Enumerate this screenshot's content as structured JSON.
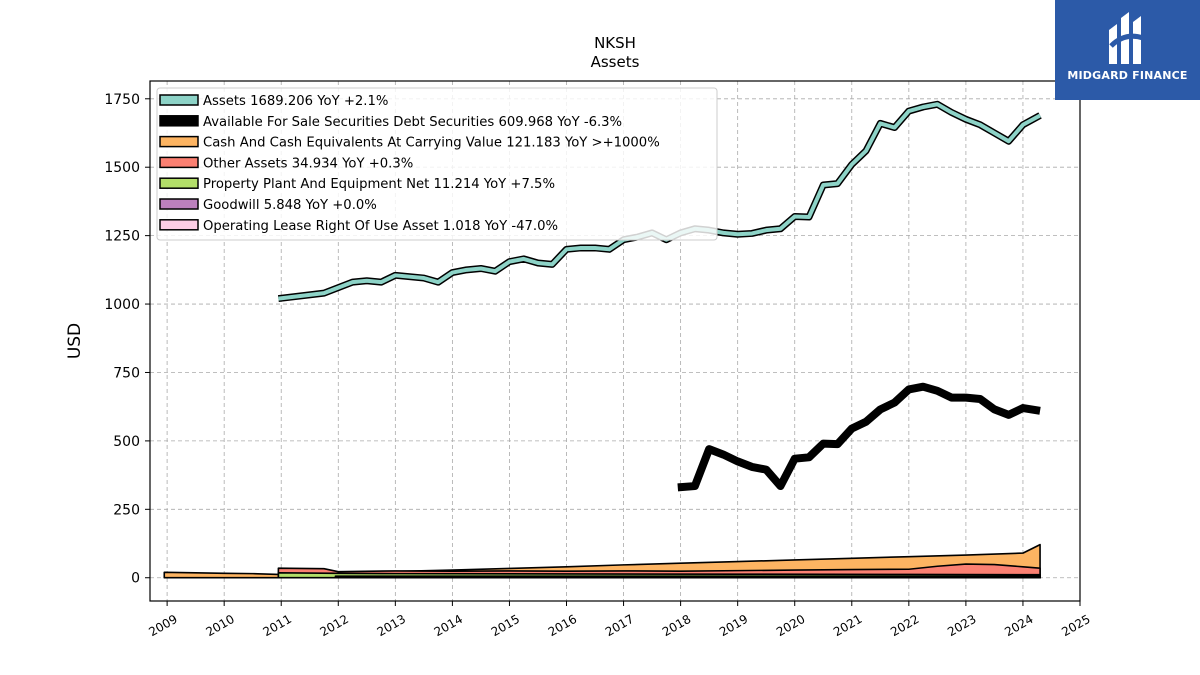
{
  "brand": {
    "name": "MIDGARD FINANCE",
    "bg_color": "#2c5aa8"
  },
  "chart_data": {
    "type": "area",
    "title": "NKSH",
    "subtitle": "Assets",
    "xlabel": "",
    "ylabel": "USD",
    "xlim": [
      2008.7,
      2025.0
    ],
    "ylim": [
      -85,
      1815
    ],
    "grid": true,
    "legend_position": "top-left",
    "x_ticks": [
      "2009",
      "2010",
      "2011",
      "2012",
      "2013",
      "2014",
      "2015",
      "2016",
      "2017",
      "2018",
      "2019",
      "2020",
      "2021",
      "2022",
      "2023",
      "2024",
      "2025"
    ],
    "y_ticks": [
      0,
      250,
      500,
      750,
      1000,
      1250,
      1500,
      1750
    ],
    "legend": [
      {
        "label": "Assets  1689.206 YoY +2.1%",
        "color": "#8dd3c7"
      },
      {
        "label": "Available For Sale Securities Debt Securities  609.968 YoY -6.3%",
        "color": "#000000"
      },
      {
        "label": "Cash And Cash Equivalents At Carrying Value  121.183 YoY >+1000%",
        "color": "#fdb462"
      },
      {
        "label": "Other Assets  34.934 YoY +0.3%",
        "color": "#fb8072"
      },
      {
        "label": "Property Plant And Equipment Net  11.214 YoY +7.5%",
        "color": "#b3de69"
      },
      {
        "label": "Goodwill  5.848 YoY +0.0%",
        "color": "#bc80bd"
      },
      {
        "label": "Operating Lease Right Of Use Asset  1.018 YoY -47.0%",
        "color": "#fccde5"
      }
    ],
    "series": [
      {
        "name": "Assets",
        "color": "#8dd3c7",
        "style": "line",
        "x": [
          2010.95,
          2011.75,
          2012.0,
          2012.25,
          2012.5,
          2012.75,
          2013.0,
          2013.25,
          2013.5,
          2013.75,
          2014.0,
          2014.25,
          2014.5,
          2014.75,
          2015.0,
          2015.25,
          2015.5,
          2015.75,
          2016.0,
          2016.25,
          2016.5,
          2016.75,
          2017.0,
          2017.25,
          2017.5,
          2017.75,
          2018.0,
          2018.25,
          2018.5,
          2018.75,
          2019.0,
          2019.25,
          2019.5,
          2019.75,
          2020.0,
          2020.25,
          2020.5,
          2020.75,
          2021.0,
          2021.25,
          2021.5,
          2021.75,
          2022.0,
          2022.25,
          2022.5,
          2022.75,
          2023.0,
          2023.25,
          2023.5,
          2023.75,
          2024.0,
          2024.3
        ],
        "values": [
          1020,
          1040,
          1060,
          1080,
          1085,
          1080,
          1105,
          1100,
          1095,
          1080,
          1115,
          1125,
          1130,
          1120,
          1155,
          1165,
          1150,
          1145,
          1200,
          1205,
          1205,
          1200,
          1235,
          1245,
          1260,
          1235,
          1260,
          1275,
          1270,
          1260,
          1255,
          1258,
          1270,
          1275,
          1320,
          1318,
          1435,
          1440,
          1510,
          1560,
          1660,
          1645,
          1705,
          1720,
          1730,
          1700,
          1675,
          1655,
          1625,
          1595,
          1655,
          1689
        ]
      },
      {
        "name": "Available For Sale Securities Debt Securities",
        "color": "#000000",
        "style": "line",
        "x": [
          2017.95,
          2018.25,
          2018.5,
          2018.75,
          2019.0,
          2019.25,
          2019.5,
          2019.75,
          2020.0,
          2020.25,
          2020.5,
          2020.75,
          2021.0,
          2021.25,
          2021.5,
          2021.75,
          2022.0,
          2022.25,
          2022.5,
          2022.75,
          2023.0,
          2023.25,
          2023.5,
          2023.75,
          2024.0,
          2024.3
        ],
        "values": [
          330,
          335,
          470,
          450,
          425,
          405,
          395,
          335,
          435,
          440,
          490,
          488,
          545,
          570,
          615,
          640,
          688,
          698,
          683,
          658,
          658,
          653,
          615,
          595,
          620,
          610
        ]
      },
      {
        "name": "Cash And Cash Equivalents At Carrying Value",
        "color": "#fdb462",
        "style": "area",
        "x": [
          2008.95,
          2009.5,
          2010.0,
          2010.5,
          2010.95,
          2012.0,
          2013.0,
          2014.0,
          2015.0,
          2016.0,
          2017.0,
          2018.0,
          2019.0,
          2020.0,
          2021.0,
          2022.0,
          2023.0,
          2024.0,
          2024.3
        ],
        "values": [
          20,
          18,
          16,
          15,
          12,
          18,
          23,
          28,
          34,
          40,
          47,
          53,
          59,
          65,
          71,
          77,
          83,
          90,
          121
        ]
      },
      {
        "name": "Other Assets",
        "color": "#fb8072",
        "style": "area",
        "x": [
          2010.95,
          2011.75,
          2012.0,
          2013.0,
          2014.0,
          2015.0,
          2016.0,
          2017.0,
          2018.0,
          2019.0,
          2020.0,
          2021.0,
          2022.0,
          2022.5,
          2023.0,
          2023.5,
          2024.0,
          2024.3
        ],
        "values": [
          35,
          33,
          22,
          25,
          24,
          25,
          24,
          25,
          24,
          26,
          28,
          30,
          31,
          42,
          50,
          48,
          40,
          35
        ]
      },
      {
        "name": "Property Plant And Equipment Net",
        "color": "#b3de69",
        "style": "area",
        "x": [
          2010.95,
          2011.95,
          2013.0,
          2016.0,
          2019.0,
          2022.0,
          2024.3
        ],
        "values": [
          18,
          16,
          15,
          14,
          13,
          12,
          11
        ]
      },
      {
        "name": "Goodwill",
        "color": "#bc80bd",
        "style": "area",
        "x": [
          2011.95,
          2024.3
        ],
        "values": [
          5.848,
          5.848
        ]
      },
      {
        "name": "Operating Lease Right Of Use Asset",
        "color": "#fccde5",
        "style": "area",
        "x": [
          2019.2,
          2024.3
        ],
        "values": [
          1.9,
          1.018
        ]
      }
    ]
  }
}
